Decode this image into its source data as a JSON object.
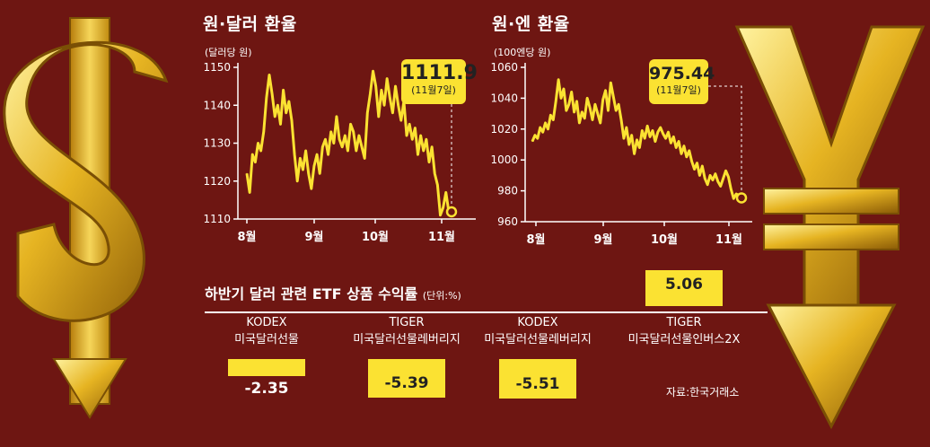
{
  "chart_data": [
    {
      "type": "line",
      "title": "원·달러 환율",
      "unit": "(달러당 원)",
      "ylim": [
        1110,
        1150
      ],
      "yticks": [
        "1150",
        "1140",
        "1130",
        "1120",
        "1110"
      ],
      "xticks": [
        "8월",
        "9월",
        "10월",
        "11월"
      ],
      "callout": {
        "value": "1111.9",
        "date": "(11월7일)"
      },
      "color": "#fbe232",
      "series": [
        {
          "values": [
            1122,
            1117,
            1127,
            1125,
            1130,
            1128,
            1133,
            1142,
            1148,
            1143,
            1137,
            1140,
            1135,
            1144,
            1138,
            1141,
            1136,
            1127,
            1120,
            1126,
            1123,
            1128,
            1122,
            1118,
            1124,
            1127,
            1122,
            1129,
            1131,
            1127,
            1133,
            1130,
            1137,
            1131,
            1129,
            1132,
            1128,
            1135,
            1133,
            1128,
            1132,
            1129,
            1126,
            1138,
            1143,
            1149,
            1145,
            1137,
            1144,
            1140,
            1147,
            1142,
            1138,
            1145,
            1140,
            1136,
            1141,
            1132,
            1135,
            1131,
            1134,
            1127,
            1132,
            1128,
            1131,
            1125,
            1129,
            1122,
            1119,
            1111,
            1113,
            1117,
            1112,
            1111.9
          ]
        }
      ]
    },
    {
      "type": "line",
      "title": "원·엔 환율",
      "unit": "(100엔당 원)",
      "ylim": [
        960,
        1060
      ],
      "yticks": [
        "1060",
        "1040",
        "1020",
        "1000",
        "980",
        "960"
      ],
      "xticks": [
        "8월",
        "9월",
        "10월",
        "11월"
      ],
      "callout": {
        "value": "975.44",
        "date": "(11월7일)"
      },
      "color": "#fbe232",
      "series": [
        {
          "values": [
            1012,
            1016,
            1014,
            1021,
            1018,
            1024,
            1020,
            1029,
            1026,
            1038,
            1052,
            1040,
            1046,
            1032,
            1036,
            1044,
            1031,
            1038,
            1024,
            1031,
            1027,
            1040,
            1034,
            1026,
            1036,
            1030,
            1024,
            1039,
            1045,
            1032,
            1050,
            1041,
            1032,
            1036,
            1026,
            1014,
            1021,
            1010,
            1016,
            1004,
            1013,
            1008,
            1019,
            1014,
            1022,
            1015,
            1019,
            1012,
            1018,
            1021,
            1017,
            1014,
            1018,
            1011,
            1015,
            1008,
            1012,
            1004,
            1009,
            1002,
            1006,
            999,
            994,
            998,
            990,
            996,
            988,
            984,
            990,
            987,
            991,
            986,
            983,
            988,
            993,
            989,
            981,
            975,
            978,
            977,
            975.44
          ]
        }
      ]
    },
    {
      "type": "bar",
      "title": "하반기 달러 관련 ETF 상품 수익률",
      "unit": "(단위:%)",
      "categories": [
        [
          "KODEX",
          "미국달러선물"
        ],
        [
          "TIGER",
          "미국달러선물레버리지"
        ],
        [
          "KODEX",
          "미국달러선물레버리지"
        ],
        [
          "TIGER",
          "미국달러선물인버스2X"
        ]
      ],
      "values": [
        -2.35,
        -5.39,
        -5.51,
        5.06
      ],
      "labels": [
        "-2.35",
        "-5.39",
        "-5.51",
        "5.06"
      ],
      "source": "자료:한국거래소"
    }
  ]
}
